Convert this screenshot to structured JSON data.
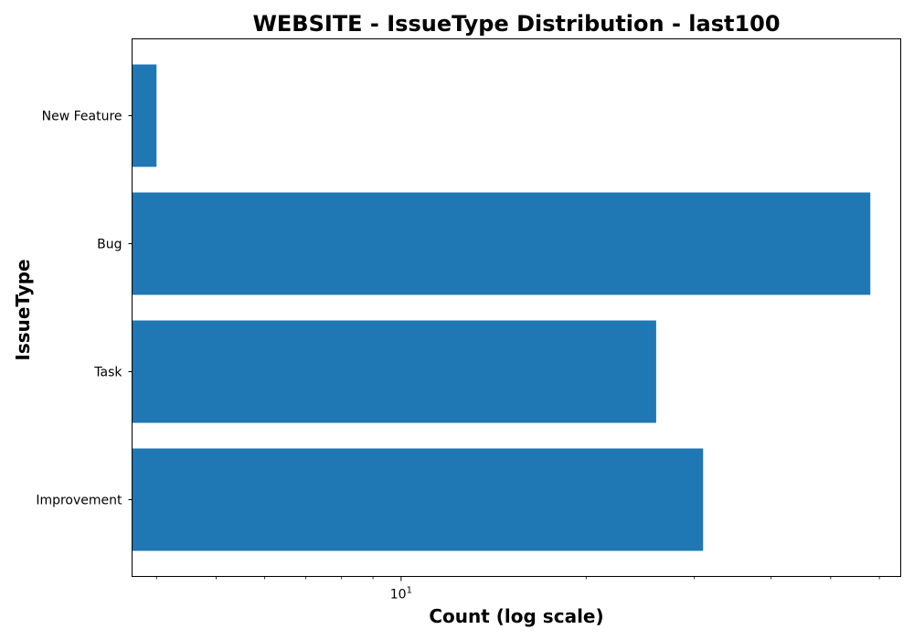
{
  "chart_data": {
    "type": "bar",
    "orientation": "horizontal",
    "title": "WEBSITE - IssueType Distribution - last100",
    "xlabel": "Count (log scale)",
    "ylabel": "IssueType",
    "x_scale": "log",
    "xlim": [
      3.65,
      65
    ],
    "x_major_ticks": [
      {
        "value": 10,
        "base": "10",
        "exponent": "1"
      }
    ],
    "x_minor_ticks": [
      4,
      5,
      6,
      7,
      8,
      9,
      20,
      30,
      40,
      50,
      60
    ],
    "categories": [
      "New Feature",
      "Bug",
      "Task",
      "Improvement"
    ],
    "values": [
      4,
      58,
      26,
      31
    ],
    "bar_color": "#1f77b4",
    "grid": false,
    "legend": "none"
  }
}
